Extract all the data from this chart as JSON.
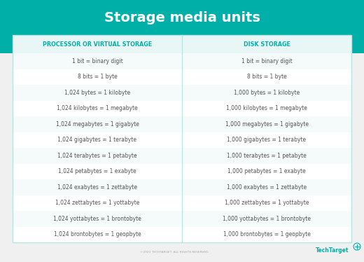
{
  "title": "Storage media units",
  "title_color": "#ffffff",
  "title_bg_color": "#00b0a8",
  "header_left": "PROCESSOR OR VIRTUAL STORAGE",
  "header_right": "DISK STORAGE",
  "header_color": "#00b0a8",
  "header_bg": "#e8f7f6",
  "rows_left": [
    "1 bit = binary digit",
    "8 bits = 1 byte",
    "1,024 bytes = 1 kilobyte",
    "1,024 kilobytes = 1 megabyte",
    "1,024 megabytes = 1 gigabyte",
    "1,024 gigabytes = 1 terabyte",
    "1,024 terabytes = 1 petabyte",
    "1,024 petabytes = 1 exabyte",
    "1,024 exabytes = 1 zettabyte",
    "1,024 zettabytes = 1 yottabyte",
    "1,024 yottabytes = 1 brontobyte",
    "1,024 brontobytes = 1 geopbyte"
  ],
  "rows_right": [
    "1 bit = binary digit",
    "8 bits = 1 byte",
    "1,000 bytes = 1 kilobyte",
    "1,000 kilobytes = 1 megabyte",
    "1,000 megabytes = 1 gigabyte",
    "1,000 gigabytes = 1 terabyte",
    "1,000 terabytes = 1 petabyte",
    "1,000 petabytes = 1 exabyte",
    "1,000 exabytes = 1 zettabyte",
    "1,000 zettabytes = 1 yottabyte",
    "1,000 yottabytes = 1 brontobyte",
    "1,000 brontobytes = 1 geopbyte"
  ],
  "row_colors": [
    "#f5fafa",
    "#ffffff",
    "#f5fafa",
    "#ffffff",
    "#f5fafa",
    "#ffffff",
    "#f5fafa",
    "#ffffff",
    "#f5fafa",
    "#ffffff",
    "#f5fafa",
    "#ffffff"
  ],
  "text_color": "#555555",
  "divider_color": "#b8e4e2",
  "bg_color": "#f0f0f0",
  "table_bg": "#ffffff",
  "footer_text": "©2021 TECHTARGET. ALL RIGHTS RESERVED.",
  "footer_logo": "TechTarget",
  "teal_color": "#00b0a8"
}
